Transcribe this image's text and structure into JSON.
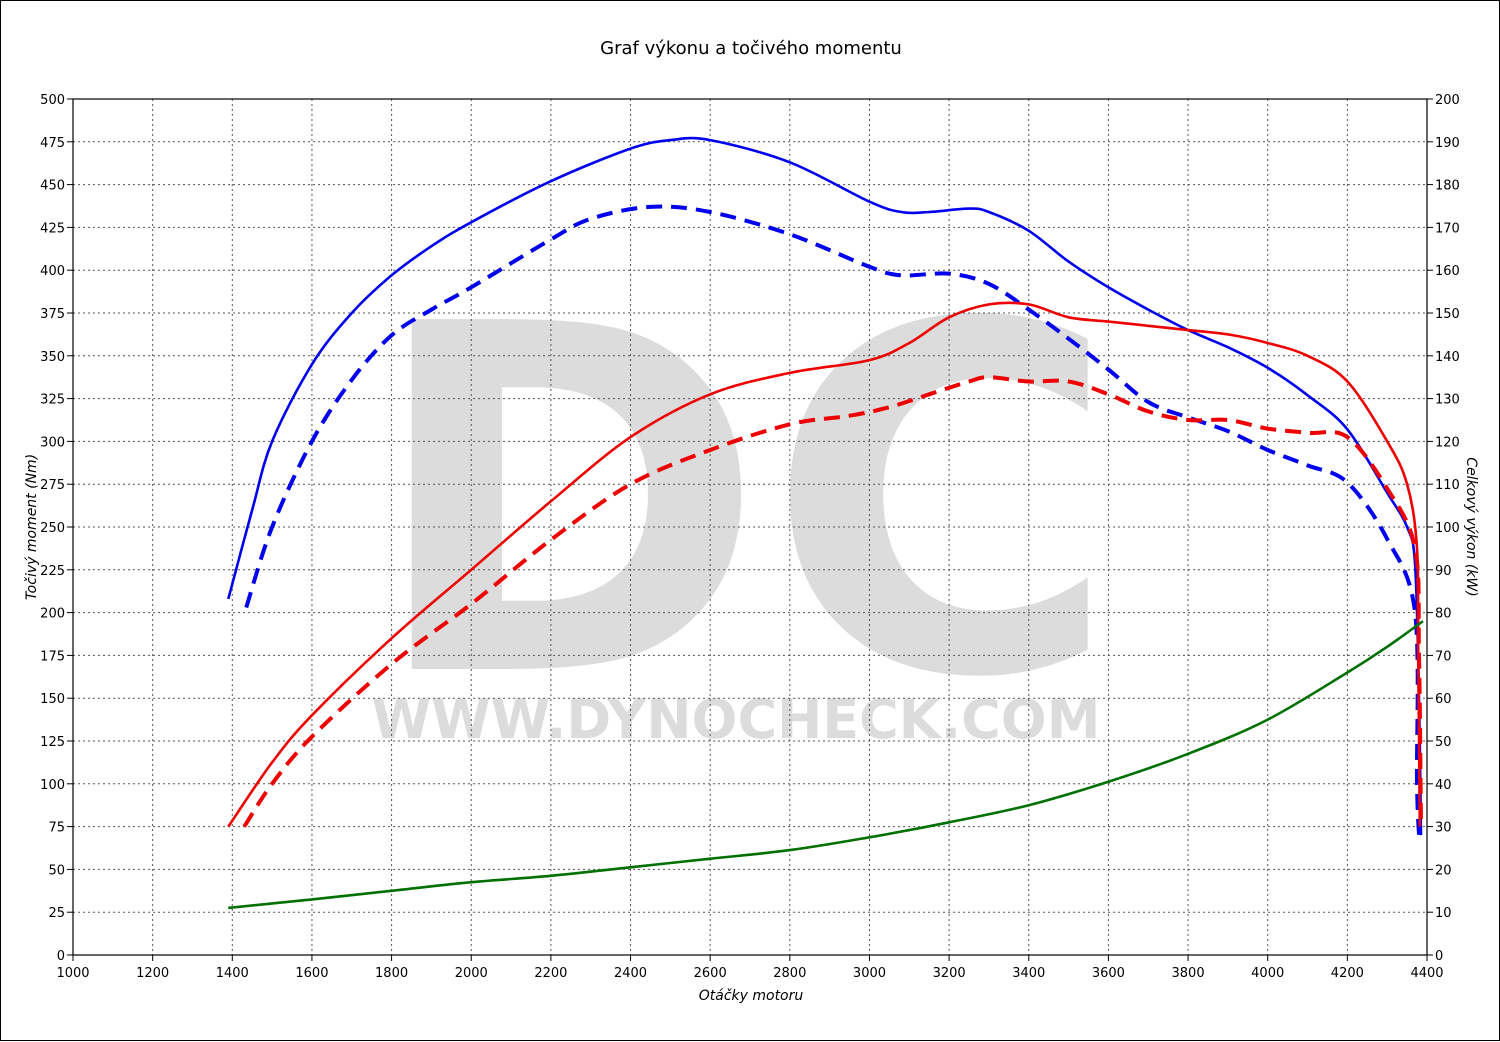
{
  "chart_data": {
    "type": "line",
    "title": "Graf výkonu a točivého momentu",
    "xlabel": "Otáčky motoru",
    "ylabel_left": "Točivý moment (Nm)",
    "ylabel_right": "Celkový výkon (kW)",
    "xlim": [
      1000,
      4400
    ],
    "ylim_left": [
      0,
      500
    ],
    "ylim_right": [
      0,
      200
    ],
    "x_ticks": [
      1000,
      1200,
      1400,
      1600,
      1800,
      2000,
      2200,
      2400,
      2600,
      2800,
      3000,
      3200,
      3400,
      3600,
      3800,
      4000,
      4200,
      4400
    ],
    "y_ticks_left": [
      0,
      25,
      50,
      75,
      100,
      125,
      150,
      175,
      200,
      225,
      250,
      275,
      300,
      325,
      350,
      375,
      400,
      425,
      450,
      475,
      500
    ],
    "y_ticks_right": [
      0,
      10,
      20,
      30,
      40,
      50,
      60,
      70,
      80,
      90,
      100,
      110,
      120,
      130,
      140,
      150,
      160,
      170,
      180,
      190,
      200
    ],
    "grid": true,
    "watermark": {
      "letters": "DC",
      "url": "WWW.DYNOCHECK.COM"
    },
    "series": [
      {
        "axis": "left",
        "color": "#0000ee",
        "style": "solid",
        "points": [
          [
            1390,
            208
          ],
          [
            1450,
            260
          ],
          [
            1500,
            300
          ],
          [
            1600,
            345
          ],
          [
            1700,
            375
          ],
          [
            1800,
            397
          ],
          [
            1900,
            414
          ],
          [
            2000,
            428
          ],
          [
            2200,
            452
          ],
          [
            2400,
            471
          ],
          [
            2500,
            476
          ],
          [
            2600,
            476
          ],
          [
            2800,
            463
          ],
          [
            3000,
            440
          ],
          [
            3080,
            434
          ],
          [
            3150,
            434
          ],
          [
            3250,
            436
          ],
          [
            3300,
            434
          ],
          [
            3400,
            423
          ],
          [
            3500,
            405
          ],
          [
            3600,
            390
          ],
          [
            3700,
            377
          ],
          [
            3800,
            365
          ],
          [
            3900,
            355
          ],
          [
            4000,
            343
          ],
          [
            4100,
            327
          ],
          [
            4200,
            307
          ],
          [
            4300,
            270
          ],
          [
            4350,
            250
          ],
          [
            4370,
            228
          ],
          [
            4380,
            150
          ],
          [
            4385,
            70
          ]
        ]
      },
      {
        "axis": "left",
        "color": "#0000ee",
        "style": "dashed",
        "points": [
          [
            1435,
            203
          ],
          [
            1500,
            250
          ],
          [
            1600,
            300
          ],
          [
            1700,
            336
          ],
          [
            1800,
            362
          ],
          [
            1900,
            377
          ],
          [
            2000,
            390
          ],
          [
            2200,
            418
          ],
          [
            2300,
            430
          ],
          [
            2450,
            437
          ],
          [
            2600,
            434
          ],
          [
            2800,
            421
          ],
          [
            3000,
            402
          ],
          [
            3080,
            397
          ],
          [
            3200,
            398
          ],
          [
            3300,
            392
          ],
          [
            3400,
            377
          ],
          [
            3500,
            360
          ],
          [
            3600,
            342
          ],
          [
            3700,
            323
          ],
          [
            3800,
            314
          ],
          [
            3900,
            306
          ],
          [
            4000,
            295
          ],
          [
            4100,
            286
          ],
          [
            4200,
            276
          ],
          [
            4300,
            243
          ],
          [
            4370,
            200
          ],
          [
            4375,
            100
          ],
          [
            4380,
            70
          ]
        ]
      },
      {
        "axis": "right",
        "color": "#ee0000",
        "style": "solid",
        "points": [
          [
            1390,
            30
          ],
          [
            1500,
            45
          ],
          [
            1600,
            56
          ],
          [
            1800,
            74
          ],
          [
            2000,
            90
          ],
          [
            2200,
            106
          ],
          [
            2400,
            121
          ],
          [
            2600,
            131
          ],
          [
            2800,
            136
          ],
          [
            3000,
            139
          ],
          [
            3100,
            143
          ],
          [
            3200,
            149
          ],
          [
            3300,
            152
          ],
          [
            3400,
            152
          ],
          [
            3500,
            149
          ],
          [
            3600,
            148
          ],
          [
            3700,
            147
          ],
          [
            3800,
            146
          ],
          [
            3900,
            145
          ],
          [
            4000,
            143
          ],
          [
            4100,
            140
          ],
          [
            4200,
            134
          ],
          [
            4300,
            120
          ],
          [
            4350,
            110
          ],
          [
            4375,
            95
          ],
          [
            4378,
            70
          ],
          [
            4382,
            30
          ]
        ]
      },
      {
        "axis": "right",
        "color": "#ee0000",
        "style": "dashed",
        "points": [
          [
            1430,
            30
          ],
          [
            1500,
            40
          ],
          [
            1600,
            51
          ],
          [
            1800,
            68
          ],
          [
            2000,
            82
          ],
          [
            2200,
            97
          ],
          [
            2400,
            110
          ],
          [
            2600,
            118
          ],
          [
            2800,
            124
          ],
          [
            2950,
            126
          ],
          [
            3050,
            128
          ],
          [
            3150,
            131
          ],
          [
            3250,
            134
          ],
          [
            3300,
            135
          ],
          [
            3400,
            134
          ],
          [
            3500,
            134
          ],
          [
            3600,
            131
          ],
          [
            3700,
            127
          ],
          [
            3800,
            125
          ],
          [
            3900,
            125
          ],
          [
            4000,
            123
          ],
          [
            4100,
            122
          ],
          [
            4200,
            121
          ],
          [
            4300,
            109
          ],
          [
            4370,
            95
          ],
          [
            4380,
            70
          ],
          [
            4385,
            30
          ]
        ]
      },
      {
        "axis": "right",
        "color": "#007000",
        "style": "solid",
        "points": [
          [
            1390,
            11
          ],
          [
            1600,
            13
          ],
          [
            1800,
            15
          ],
          [
            2000,
            17
          ],
          [
            2200,
            18.5
          ],
          [
            2400,
            20.5
          ],
          [
            2600,
            22.5
          ],
          [
            2800,
            24.5
          ],
          [
            3000,
            27.5
          ],
          [
            3200,
            31
          ],
          [
            3400,
            35
          ],
          [
            3600,
            40.5
          ],
          [
            3800,
            47
          ],
          [
            4000,
            55
          ],
          [
            4200,
            66
          ],
          [
            4300,
            72
          ],
          [
            4390,
            78
          ]
        ]
      }
    ]
  }
}
